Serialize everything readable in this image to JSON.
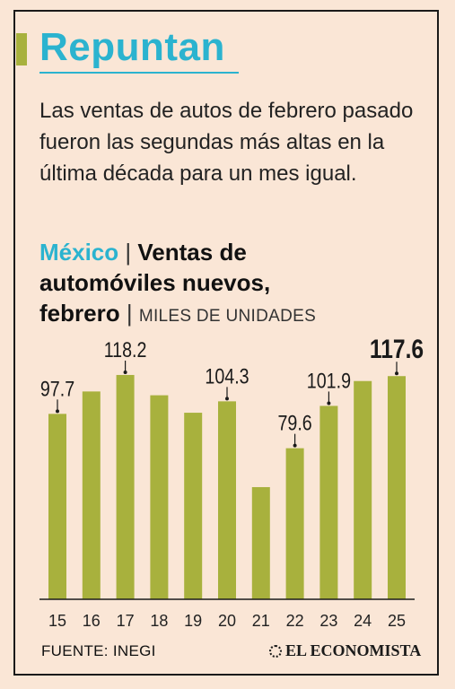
{
  "header": {
    "title": "Repuntan",
    "subtitle": "Las ventas de autos de febrero pasado fueron las segundas más altas en la última década para un mes igual."
  },
  "chart_header": {
    "country": "México",
    "separator": "|",
    "title_line1": "Ventas de",
    "title_line2": "automóviles nuevos,",
    "title_line3": "febrero",
    "units": "MILES DE UNIDADES"
  },
  "colors": {
    "bar": "#a8b13d",
    "accent": "#2bb3cf",
    "background": "#fae6d6"
  },
  "chart_data": {
    "type": "bar",
    "title": "Ventas de automóviles nuevos, febrero",
    "ylabel": "MILES DE UNIDADES",
    "categories": [
      "15",
      "16",
      "17",
      "18",
      "19",
      "20",
      "21",
      "22",
      "23",
      "24",
      "25"
    ],
    "values": [
      97.7,
      109.5,
      118.2,
      107.5,
      98.3,
      104.3,
      59.1,
      79.6,
      101.9,
      115.0,
      117.6
    ],
    "labels": [
      {
        "index": 0,
        "text": "97.7",
        "bold": false
      },
      {
        "index": 2,
        "text": "118.2",
        "bold": false
      },
      {
        "index": 5,
        "text": "104.3",
        "bold": false
      },
      {
        "index": 7,
        "text": "79.6",
        "bold": false
      },
      {
        "index": 8,
        "text": "101.9",
        "bold": false
      },
      {
        "index": 10,
        "text": "117.6",
        "bold": true
      }
    ],
    "ylim": [
      0,
      130
    ],
    "grid": false
  },
  "footer": {
    "source": "FUENTE: INEGI",
    "brand": "EL ECONOMISTA"
  }
}
